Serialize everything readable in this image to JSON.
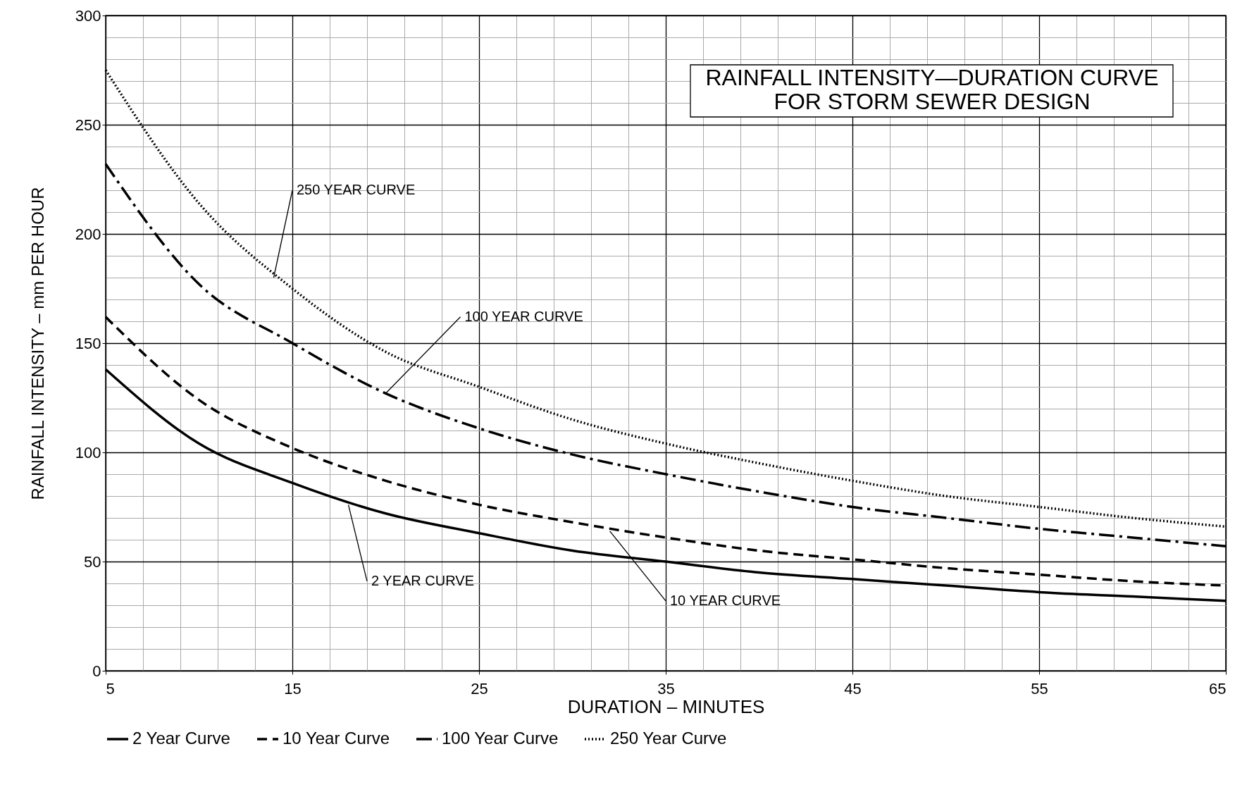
{
  "chart_data": {
    "type": "line",
    "title": "RAINFALL INTENSITY—DURATION CURVE\nFOR STORM SEWER DESIGN",
    "xlabel": "DURATION  –  MINUTES",
    "ylabel": "RAINFALL INTENSITY  –  mm PER HOUR",
    "x": [
      5,
      10,
      15,
      20,
      25,
      30,
      35,
      40,
      45,
      50,
      55,
      60,
      65
    ],
    "series": [
      {
        "name": "2 Year Curve",
        "color": "#000000",
        "line_style": "solid",
        "values": [
          138,
          104,
          86,
          72,
          63,
          55,
          50,
          45,
          42,
          39,
          36,
          34,
          32
        ]
      },
      {
        "name": "10 Year Curve",
        "color": "#000000",
        "line_style": "dashed",
        "values": [
          162,
          124,
          102,
          87,
          76,
          68,
          61,
          55,
          51,
          47,
          44,
          41,
          39
        ]
      },
      {
        "name": "100 Year Curve",
        "color": "#000000",
        "line_style": "dashdot",
        "values": [
          232,
          177,
          150,
          127,
          111,
          99,
          90,
          82,
          75,
          70,
          65,
          61,
          57
        ]
      },
      {
        "name": "250 Year Curve",
        "color": "#000000",
        "line_style": "dotted",
        "values": [
          275,
          214,
          175,
          146,
          130,
          115,
          104,
          95,
          87,
          80,
          75,
          70,
          66
        ]
      }
    ],
    "annotations": [
      {
        "text": "250 YEAR CURVE",
        "x": 14,
        "y": 180
      },
      {
        "text": "100 YEAR CURVE",
        "x": 20,
        "y": 127
      },
      {
        "text": "2 YEAR CURVE",
        "x": 18,
        "y": 76
      },
      {
        "text": "10 YEAR CURVE",
        "x": 32,
        "y": 64
      }
    ],
    "xlim": [
      5,
      65
    ],
    "xticks": [
      5,
      15,
      25,
      35,
      45,
      55,
      65
    ],
    "ylim": [
      0,
      300
    ],
    "yticks": [
      0,
      50,
      100,
      150,
      200,
      250,
      300
    ],
    "grid": true,
    "legend": "bottom",
    "marker": "none"
  }
}
